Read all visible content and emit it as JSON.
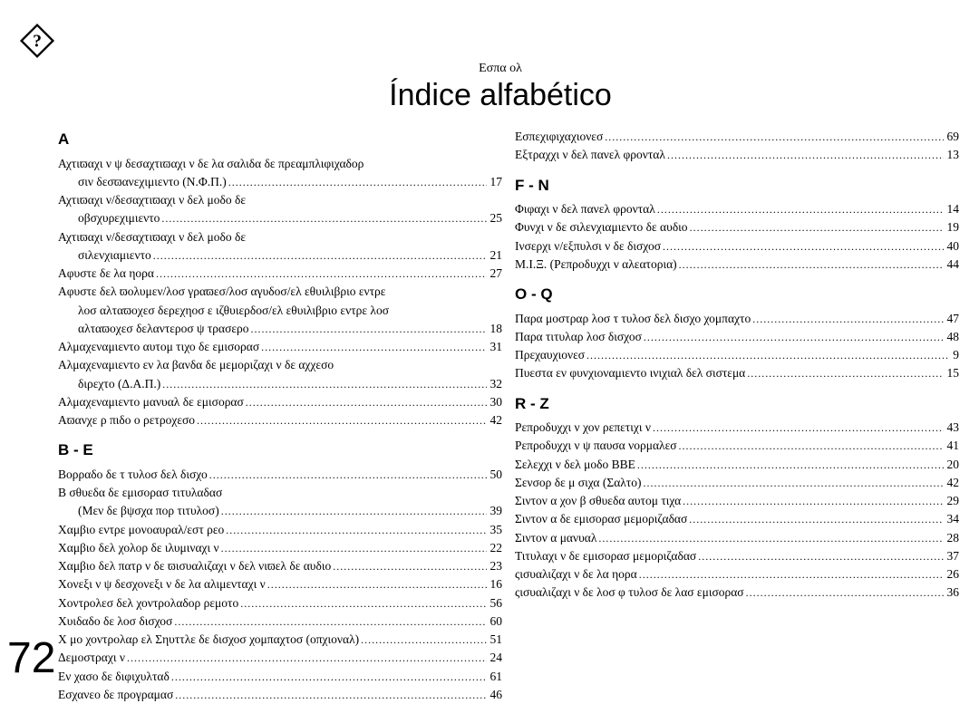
{
  "page_number": "72",
  "subtitle": "Εσπα ολ",
  "title": "Índice alfabético",
  "left_sections": [
    {
      "heading": "A",
      "entries": [
        {
          "label": "Αχτιϖαχι ν ψ δεσαχτιϖαχι ν δε λα σαλιδα δε πρεαμπλιφιχαδορ",
          "indent": false,
          "page": "",
          "nolead": true
        },
        {
          "label": "σιν δεσϖανεχιμιεντο (Ν.Φ.Π.)",
          "indent": true,
          "page": "17"
        },
        {
          "label": "Αχτιϖαχι ν/δεσαχτιϖαχι ν δελ μοδο δε",
          "indent": false,
          "page": "",
          "nolead": true
        },
        {
          "label": "οβσχυρεχιμιεντο",
          "indent": true,
          "page": "25"
        },
        {
          "label": "Αχτιϖαχι ν/δεσαχτιϖαχι ν δελ μοδο δε",
          "indent": false,
          "page": "",
          "nolead": true
        },
        {
          "label": "σιλενχιαμιεντο",
          "indent": true,
          "page": "21"
        },
        {
          "label": "Αφυστε δε λα ηορα",
          "indent": false,
          "page": "27"
        },
        {
          "label": "Αφυστε δελ ϖολυμεν/λοσ γραϖεσ/λοσ αγυδοσ/ελ εθυιλιβριο εντρε",
          "indent": false,
          "page": "",
          "nolead": true
        },
        {
          "label": "λοσ αλταϖοχεσ δερεχηοσ ε ιζθυιερδοσ/ελ εθυιλιβριο εντρε λοσ",
          "indent": true,
          "page": "",
          "nolead": true
        },
        {
          "label": "αλταϖοχεσ δελαντεροσ ψ τρασερο",
          "indent": true,
          "page": "18"
        },
        {
          "label": "Αλμαχεναμιεντο αυτομ τιχο δε εμισορασ",
          "indent": false,
          "page": "31"
        },
        {
          "label": "Αλμαχεναμιεντο εν λα βανδα δε μεμοριζαχι ν δε αχχεσο",
          "indent": false,
          "page": "",
          "nolead": true
        },
        {
          "label": "διρεχτο (Δ.Α.Π.)",
          "indent": true,
          "page": "32"
        },
        {
          "label": "Αλμαχεναμιεντο μανυαλ δε εμισορασ",
          "indent": false,
          "page": "30"
        },
        {
          "label": "Αϖανχε ρ πιδο ο ρετροχεσο",
          "indent": false,
          "page": "42"
        }
      ]
    },
    {
      "heading": "B - E",
      "entries": [
        {
          "label": "Βορραδο δε τ τυλοσ δελ δισχο",
          "indent": false,
          "page": "50"
        },
        {
          "label": "Β σθυεδα δε εμισορασ τιτυλαδασ",
          "indent": false,
          "page": "",
          "nolead": true
        },
        {
          "label": "(Μεν  δε βψσχα πορ τιτυλοσ)",
          "indent": true,
          "page": "39"
        },
        {
          "label": "Χαμβιο εντρε μονοαυραλ/εστ ρεο",
          "indent": false,
          "page": "35"
        },
        {
          "label": "Χαμβιο δελ χολορ δε ιλυμιναχι ν",
          "indent": false,
          "page": "22"
        },
        {
          "label": "Χαμβιο δελ πατρ ν δε ϖισυαλιζαχι ν δελ νιϖελ δε αυδιο",
          "indent": false,
          "page": "23"
        },
        {
          "label": "Χονεξι ν ψ δεσχονεξι ν δε λα αλιμενταχι ν",
          "indent": false,
          "page": "16"
        },
        {
          "label": "Χοντρολεσ δελ χοντρολαδορ ρεμοτο",
          "indent": false,
          "page": "56"
        },
        {
          "label": "Χυιδαδο δε λοσ δισχοσ",
          "indent": false,
          "page": "60"
        },
        {
          "label": "Χ μο χοντρολαρ ελ Σηυττλε δε δισχοσ χομπαχτοσ (οπχιοναλ)",
          "indent": false,
          "page": "51",
          "tight": true
        },
        {
          "label": "Δεμοστραχι ν",
          "indent": false,
          "page": "24"
        },
        {
          "label": "Εν χασο δε διφιχυλταδ",
          "indent": false,
          "page": "61"
        },
        {
          "label": "Εσχανεο δε προγραμασ",
          "indent": false,
          "page": "46"
        }
      ]
    }
  ],
  "right_sections": [
    {
      "heading": "",
      "entries": [
        {
          "label": "Εσπεχιφιχαχιονεσ",
          "indent": false,
          "page": "69"
        },
        {
          "label": "Εξτραχχι ν δελ πανελ φρονταλ",
          "indent": false,
          "page": "13"
        }
      ]
    },
    {
      "heading": "F - N",
      "entries": [
        {
          "label": "Φιφαχι ν δελ πανελ φρονταλ",
          "indent": false,
          "page": "14"
        },
        {
          "label": "Φυνχι ν δε σιλενχιαμιεντο δε αυδιο",
          "indent": false,
          "page": "19"
        },
        {
          "label": "Ινσερχι ν/εξπυλσι ν δε δισχοσ",
          "indent": false,
          "page": "40"
        },
        {
          "label": "Μ.Ι.Ξ. (Ρεπροδυχχι ν αλεατορια)",
          "indent": false,
          "page": "44"
        }
      ]
    },
    {
      "heading": "O - Q",
      "entries": [
        {
          "label": "Παρα μοστραρ λοσ τ τυλοσ δελ δισχο χομπαχτο",
          "indent": false,
          "page": "47"
        },
        {
          "label": "Παρα τιτυλαρ λοσ δισχοσ",
          "indent": false,
          "page": "48"
        },
        {
          "label": "Πρεχαυχιονεσ",
          "indent": false,
          "page": "9"
        },
        {
          "label": "Πυεστα εν φυνχιοναμιεντο ινιχιαλ δελ σιστεμα",
          "indent": false,
          "page": "15"
        }
      ]
    },
    {
      "heading": "R - Z",
      "entries": [
        {
          "label": "Ρεπροδυχχι ν χον ρεπετιχι ν",
          "indent": false,
          "page": "43"
        },
        {
          "label": "Ρεπροδυχχι ν ψ παυσα νορμαλεσ",
          "indent": false,
          "page": "41"
        },
        {
          "label": "Σελεχχι ν δελ μοδο ΒΒΕ",
          "indent": false,
          "page": "20"
        },
        {
          "label": "Σενσορ δε μ σιχα (Σαλτο)",
          "indent": false,
          "page": "42"
        },
        {
          "label": "Σιντον α χον β σθυεδα αυτομ τιχα",
          "indent": false,
          "page": "29"
        },
        {
          "label": "Σιντον α δε εμισορασ μεμοριζαδασ",
          "indent": false,
          "page": "34"
        },
        {
          "label": "Σιντον α μανυαλ",
          "indent": false,
          "page": "28"
        },
        {
          "label": "Τιτυλαχι ν δε εμισορασ μεμοριζαδασ",
          "indent": false,
          "page": "37"
        },
        {
          "label": "ςισυαλιζαχι ν δε λα ηορα",
          "indent": false,
          "page": "26"
        },
        {
          "label": "ςισυαλιζαχι ν δε λοσ φ τυλοσ δε λασ εμισορασ",
          "indent": false,
          "page": "36"
        }
      ]
    }
  ]
}
